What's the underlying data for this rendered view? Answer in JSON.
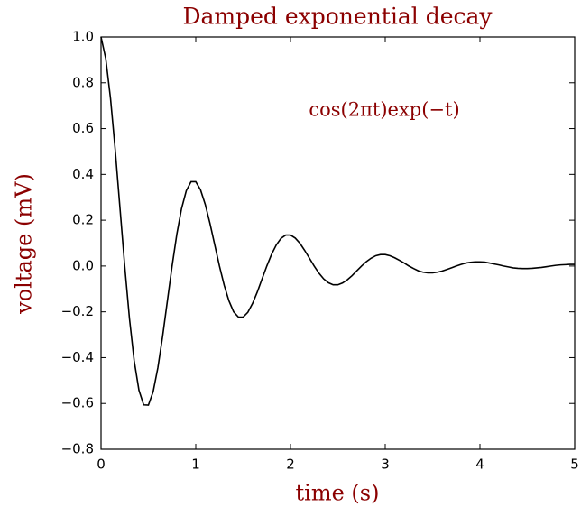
{
  "chart_data": {
    "type": "line",
    "title": "Damped exponential decay",
    "xlabel": "time (s)",
    "ylabel": "voltage (mV)",
    "annotation": "cos(2πt)exp(−t)",
    "text_color": "#8b0000",
    "color": "#000000",
    "xlim": [
      0,
      5
    ],
    "ylim": [
      -0.8,
      1.0
    ],
    "xticks": [
      0,
      1,
      2,
      3,
      4,
      5
    ],
    "yticks": [
      {
        "value": -0.8,
        "label": "−0.8"
      },
      {
        "value": -0.6,
        "label": "−0.6"
      },
      {
        "value": -0.4,
        "label": "−0.4"
      },
      {
        "value": -0.2,
        "label": "−0.2"
      },
      {
        "value": 0.0,
        "label": "0.0"
      },
      {
        "value": 0.2,
        "label": "0.2"
      },
      {
        "value": 0.4,
        "label": "0.4"
      },
      {
        "value": 0.6,
        "label": "0.6"
      },
      {
        "value": 0.8,
        "label": "0.8"
      },
      {
        "value": 1.0,
        "label": "1.0"
      }
    ],
    "grid": false,
    "x": [
      0,
      0.05,
      0.1,
      0.15,
      0.2,
      0.25,
      0.3,
      0.35,
      0.4,
      0.45,
      0.5,
      0.55,
      0.6,
      0.65,
      0.7,
      0.75,
      0.8,
      0.85,
      0.9,
      0.95,
      1,
      1.05,
      1.1,
      1.15,
      1.2,
      1.25,
      1.3,
      1.35,
      1.4,
      1.45,
      1.5,
      1.55,
      1.6,
      1.65,
      1.7,
      1.75,
      1.8,
      1.85,
      1.9,
      1.95,
      2,
      2.05,
      2.1,
      2.15,
      2.2,
      2.25,
      2.3,
      2.35,
      2.4,
      2.45,
      2.5,
      2.55,
      2.6,
      2.65,
      2.7,
      2.75,
      2.8,
      2.85,
      2.9,
      2.95,
      3,
      3.05,
      3.1,
      3.15,
      3.2,
      3.25,
      3.3,
      3.35,
      3.4,
      3.45,
      3.5,
      3.55,
      3.6,
      3.65,
      3.7,
      3.75,
      3.8,
      3.85,
      3.9,
      3.95,
      4,
      4.05,
      4.1,
      4.15,
      4.2,
      4.25,
      4.3,
      4.35,
      4.4,
      4.45,
      4.5,
      4.55,
      4.6,
      4.65,
      4.7,
      4.75,
      4.8,
      4.85,
      4.9,
      4.95,
      5
    ],
    "values": [
      1,
      0.905,
      0.732,
      0.506,
      0.253,
      0,
      -0.229,
      -0.414,
      -0.542,
      -0.606,
      -0.607,
      -0.549,
      -0.444,
      -0.307,
      -0.153,
      0,
      0.139,
      0.251,
      0.329,
      0.368,
      0.368,
      0.333,
      0.269,
      0.186,
      0.093,
      0,
      -0.084,
      -0.152,
      -0.2,
      -0.223,
      -0.223,
      -0.202,
      -0.163,
      -0.113,
      -0.056,
      0,
      0.051,
      0.092,
      0.121,
      0.135,
      0.135,
      0.122,
      0.099,
      0.068,
      0.034,
      0,
      -0.031,
      -0.056,
      -0.073,
      -0.082,
      -0.082,
      -0.074,
      -0.06,
      -0.042,
      -0.021,
      0,
      0.019,
      0.034,
      0.045,
      0.05,
      0.05,
      0.045,
      0.036,
      0.025,
      0.013,
      0,
      -0.011,
      -0.021,
      -0.027,
      -0.03,
      -0.03,
      -0.027,
      -0.022,
      -0.015,
      -0.008,
      0,
      0.007,
      0.013,
      0.016,
      0.018,
      0.018,
      0.017,
      0.013,
      0.009,
      0.005,
      0,
      -0.004,
      -0.008,
      -0.01,
      -0.011,
      -0.011,
      -0.01,
      -0.008,
      -0.006,
      -0.003,
      0,
      0.003,
      0.005,
      0.006,
      0.007,
      0.007
    ]
  }
}
